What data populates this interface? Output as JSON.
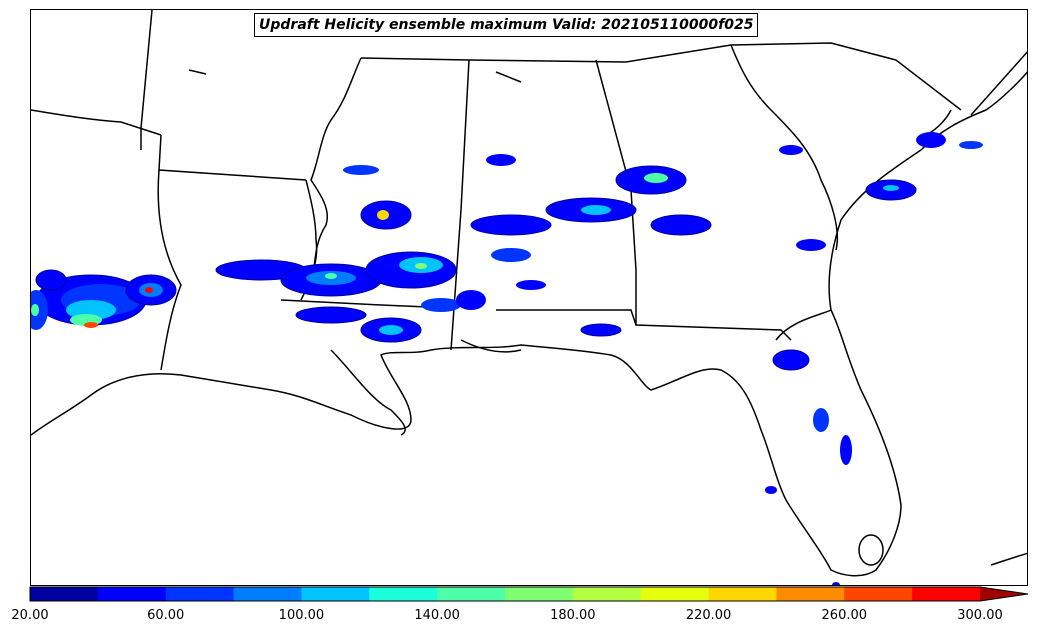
{
  "title": "Updraft Helicity ensemble maximum Valid: 202105110000f025",
  "colorbar": {
    "levels": [
      20,
      40,
      60,
      80,
      100,
      120,
      140,
      160,
      180,
      200,
      220,
      240,
      260,
      280,
      300
    ],
    "colors": [
      "#00009e",
      "#0000ff",
      "#0035ff",
      "#007dff",
      "#00c3ff",
      "#1affd9",
      "#4dffa6",
      "#80ff73",
      "#b3ff40",
      "#e6ff0d",
      "#ffd700",
      "#ff8c00",
      "#ff4500",
      "#ff0000",
      "#a00000"
    ],
    "extend": "max",
    "tick_labels": [
      "20.00",
      "60.00",
      "100.00",
      "140.00",
      "180.00",
      "220.00",
      "260.00",
      "300.00"
    ]
  },
  "map": {
    "region": "Southeastern United States",
    "field": "Updraft Helicity ensemble maximum",
    "feature_colors": {
      "coast_and_borders": "#000000",
      "background": "#ffffff"
    }
  }
}
